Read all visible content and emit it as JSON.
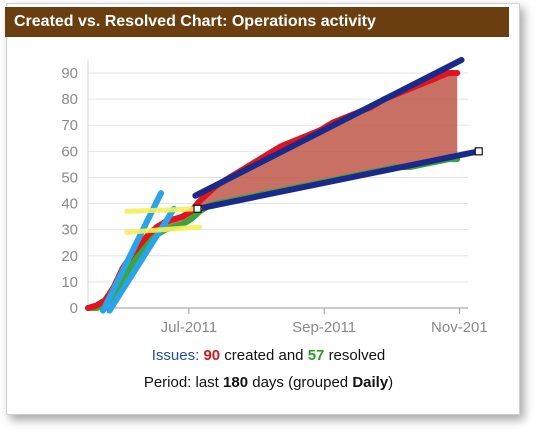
{
  "header": {
    "title": "Created vs. Resolved Chart: Operations activity"
  },
  "legend": {
    "issues_label": "Issues:",
    "created_count": "90",
    "created_text": "created and",
    "resolved_count": "57",
    "resolved_text": "resolved",
    "period_prefix": "Period: last",
    "period_days": "180",
    "period_mid": "days (grouped",
    "period_group": "Daily",
    "period_suffix": ")"
  },
  "colors": {
    "header_bg": "#6b3e10",
    "created": "#e0141e",
    "resolved": "#3aa63a",
    "gap_fill": "#c0574a",
    "blue_trend": "#1a2a8a",
    "light_blue_trend": "#2aa4e8",
    "yellow_marker": "#f5ee5a"
  },
  "chart_data": {
    "type": "area",
    "title": "Created vs. Resolved Chart: Operations activity",
    "xlabel": "",
    "ylabel": "",
    "x_tick_labels": [
      "Jul-2011",
      "Sep-2011",
      "Nov-201"
    ],
    "x_ticks_day": [
      47,
      110,
      173
    ],
    "y_ticks": [
      0,
      10,
      20,
      30,
      40,
      50,
      60,
      70,
      80,
      90
    ],
    "ylim": [
      0,
      95
    ],
    "xlim_day": [
      0,
      177
    ],
    "grid": "horizontal",
    "series": [
      {
        "name": "created",
        "x_day": [
          0,
          4,
          8,
          12,
          16,
          20,
          24,
          28,
          32,
          36,
          40,
          44,
          48,
          52,
          56,
          60,
          66,
          72,
          78,
          84,
          90,
          96,
          102,
          108,
          114,
          120,
          126,
          132,
          138,
          144,
          150,
          156,
          162,
          168,
          172
        ],
        "values": [
          0,
          1,
          3,
          8,
          15,
          20,
          24,
          28,
          31,
          33,
          34,
          35,
          37,
          41,
          44,
          47,
          50,
          53,
          56,
          59,
          62,
          64,
          66,
          68,
          71,
          73,
          75,
          77,
          80,
          82,
          84,
          86,
          88,
          90,
          90
        ]
      },
      {
        "name": "resolved",
        "x_day": [
          0,
          4,
          8,
          12,
          16,
          20,
          24,
          28,
          32,
          36,
          40,
          44,
          48,
          52,
          56,
          60,
          66,
          72,
          78,
          84,
          90,
          96,
          102,
          108,
          114,
          120,
          126,
          132,
          138,
          144,
          150,
          156,
          162,
          168,
          172
        ],
        "values": [
          0,
          0,
          1,
          5,
          11,
          16,
          21,
          25,
          28,
          30,
          31,
          32,
          34,
          37,
          39,
          40,
          41,
          42,
          43,
          44,
          45,
          46,
          47,
          48,
          49,
          50,
          51,
          52,
          53,
          54,
          54,
          55,
          56,
          57,
          57
        ]
      }
    ],
    "annotations": {
      "trend_lines": [
        {
          "color": "blue",
          "x_day": [
            50,
            174
          ],
          "values": [
            43,
            95
          ]
        },
        {
          "color": "blue",
          "x_day": [
            51,
            182
          ],
          "values": [
            38,
            60
          ]
        },
        {
          "color": "light_blue",
          "x_day": [
            7,
            34
          ],
          "values": [
            -1,
            44
          ]
        },
        {
          "color": "light_blue",
          "x_day": [
            10,
            40
          ],
          "values": [
            -1,
            38
          ]
        },
        {
          "color": "yellow",
          "x_day": [
            18,
            52
          ],
          "values": [
            37,
            38
          ]
        },
        {
          "color": "yellow",
          "x_day": [
            18,
            52
          ],
          "values": [
            29,
            31
          ]
        }
      ],
      "handles": [
        {
          "x_day": [
            51
          ],
          "values": [
            38
          ]
        },
        {
          "x_day": [
            182
          ],
          "values": [
            60
          ]
        }
      ]
    }
  }
}
